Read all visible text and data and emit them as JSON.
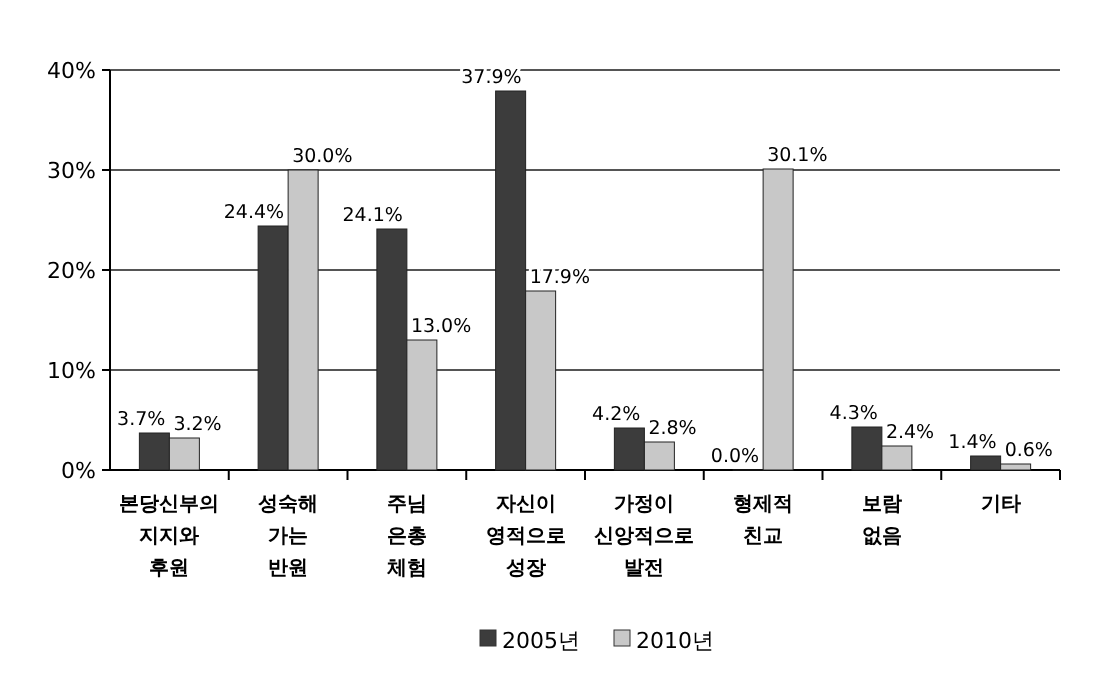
{
  "chart_data": {
    "type": "bar",
    "categories": [
      "본당신부의 지지와 후원",
      "성숙해 가는 반원",
      "주님 은총 체험",
      "자신이 영적으로 성장",
      "가정이 신앙적으로 발전",
      "형제적 친교",
      "보람 없음",
      "기타"
    ],
    "series": [
      {
        "name": "2005년",
        "color": "#3c3c3c",
        "values": [
          3.7,
          24.4,
          24.1,
          37.9,
          4.2,
          0.0,
          4.3,
          1.4
        ],
        "value_labels": [
          "3.7%",
          "24.4%",
          "24.1%",
          "37.9%",
          "4.2%",
          "0.0%",
          "4.3%",
          "1.4%"
        ]
      },
      {
        "name": "2010년",
        "color": "#c8c8c8",
        "values": [
          3.2,
          30.0,
          13.0,
          17.9,
          2.8,
          30.1,
          2.4,
          0.6
        ],
        "value_labels": [
          "3.2%",
          "30.0%",
          "13.0%",
          "17.9%",
          "2.8%",
          "30.1%",
          "2.4%",
          "0.6%"
        ]
      }
    ],
    "ylim": [
      0,
      40
    ],
    "yticks": [
      {
        "value": 0,
        "label": "0%"
      },
      {
        "value": 10,
        "label": "10%"
      },
      {
        "value": 20,
        "label": "20%"
      },
      {
        "value": 30,
        "label": "30%"
      },
      {
        "value": 40,
        "label": "40%"
      }
    ],
    "grid": "y",
    "legend": "bottom"
  }
}
